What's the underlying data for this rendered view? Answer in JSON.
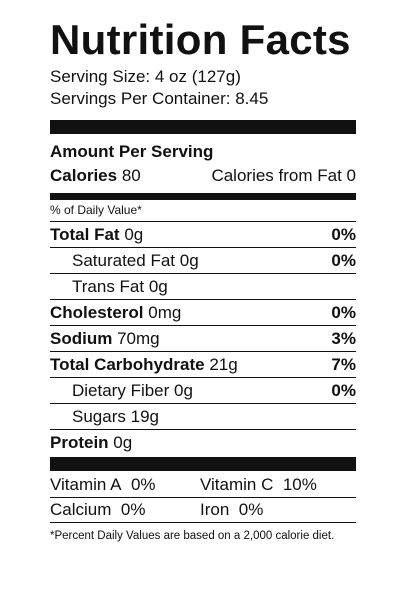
{
  "title": "Nutrition Facts",
  "serving_size": "Serving Size:  4 oz (127g)",
  "servings_per_container": "Servings Per Container:  8.45",
  "amount_per_serving": "Amount Per Serving",
  "calories": {
    "label": "Calories",
    "value": "80"
  },
  "calories_from_fat": "Calories from Fat  0",
  "dv_header": "% of Daily Value*",
  "nutrients": [
    {
      "label": "Total Fat",
      "amount": "0g",
      "pct": "0%"
    },
    {
      "label": "Saturated Fat",
      "amount": "0g",
      "pct": "0%"
    },
    {
      "label": "Trans Fat",
      "amount": "0g",
      "pct": ""
    },
    {
      "label": "Cholesterol",
      "amount": "0mg",
      "pct": "0%"
    },
    {
      "label": "Sodium",
      "amount": "70mg",
      "pct": "3%"
    },
    {
      "label": "Total Carbohydrate",
      "amount": "21g",
      "pct": "7%"
    },
    {
      "label": "Dietary Fiber",
      "amount": "0g",
      "pct": "0%"
    },
    {
      "label": "Sugars",
      "amount": "19g",
      "pct": ""
    },
    {
      "label": "Protein",
      "amount": "0g",
      "pct": ""
    }
  ],
  "vitamins": [
    {
      "label": "Vitamin A",
      "value": "0%"
    },
    {
      "label": "Vitamin C",
      "value": "10%"
    },
    {
      "label": "Calcium",
      "value": "0%"
    },
    {
      "label": "Iron",
      "value": "0%"
    }
  ],
  "footnote": "*Percent Daily Values are based on a 2,000 calorie diet."
}
